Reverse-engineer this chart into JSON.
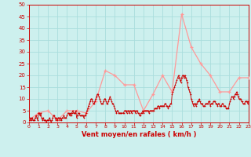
{
  "title": "",
  "xlabel": "Vent moyen/en rafales ( km/h )",
  "bg_color": "#cdf0ee",
  "grid_color": "#aadddd",
  "rafales_color": "#ff9999",
  "moyen_color": "#cc0000",
  "ylim": [
    0,
    50
  ],
  "yticks": [
    0,
    5,
    10,
    15,
    20,
    25,
    30,
    35,
    40,
    45,
    50
  ],
  "xtick_labels": [
    "0",
    "1",
    "2",
    "3",
    "4",
    "5",
    "6",
    "7",
    "8",
    "9",
    "10",
    "11",
    "12",
    "13",
    "14",
    "15",
    "16",
    "17",
    "18",
    "19",
    "20",
    "21",
    "22",
    "23"
  ],
  "rafales_x": [
    0,
    1,
    2,
    3,
    4,
    5,
    6,
    7,
    8,
    9,
    10,
    11,
    12,
    13,
    14,
    15,
    16,
    17,
    18,
    19,
    20,
    21,
    22,
    23
  ],
  "rafales_y": [
    1,
    4,
    5,
    1,
    5,
    5,
    4,
    9,
    22,
    20,
    16,
    16,
    5,
    12,
    20,
    13,
    46,
    32,
    25,
    20,
    13,
    13,
    19,
    19
  ],
  "moyen_y": [
    1,
    1,
    2,
    1,
    2,
    1,
    1,
    1,
    2,
    3,
    2,
    1,
    4,
    4,
    3,
    4,
    2,
    1,
    2,
    1,
    1,
    1,
    0,
    1,
    1,
    1,
    2,
    1,
    0,
    1,
    2,
    3,
    3,
    2,
    1,
    2,
    1,
    2,
    2,
    1,
    2,
    1,
    2,
    2,
    3,
    2,
    2,
    2,
    3,
    4,
    4,
    3,
    4,
    3,
    4,
    5,
    4,
    4,
    4,
    5,
    2,
    3,
    4,
    4,
    3,
    3,
    3,
    3,
    3,
    2,
    3,
    3,
    4,
    5,
    6,
    7,
    8,
    9,
    10,
    10,
    9,
    8,
    8,
    9,
    10,
    11,
    12,
    12,
    11,
    10,
    9,
    8,
    8,
    8,
    9,
    10,
    10,
    9,
    8,
    8,
    9,
    10,
    11,
    10,
    9,
    8,
    8,
    7,
    6,
    5,
    4,
    5,
    5,
    4,
    4,
    4,
    4,
    4,
    4,
    4,
    5,
    5,
    5,
    4,
    5,
    5,
    4,
    5,
    5,
    4,
    5,
    5,
    5,
    5,
    4,
    5,
    5,
    4,
    4,
    3,
    3,
    4,
    4,
    5,
    4,
    5,
    5,
    5,
    5,
    5,
    5,
    4,
    5,
    5,
    5,
    5,
    5,
    5,
    6,
    6,
    6,
    6,
    7,
    7,
    6,
    7,
    7,
    7,
    7,
    7,
    7,
    8,
    8,
    7,
    7,
    6,
    7,
    7,
    8,
    8,
    12,
    13,
    14,
    15,
    16,
    17,
    18,
    19,
    20,
    19,
    18,
    17,
    19,
    20,
    20,
    19,
    20,
    19,
    18,
    17,
    15,
    14,
    13,
    12,
    10,
    9,
    8,
    7,
    8,
    8,
    7,
    8,
    9,
    9,
    10,
    9,
    8,
    8,
    8,
    7,
    7,
    7,
    8,
    8,
    8,
    8,
    9,
    9,
    7,
    8,
    8,
    8,
    9,
    9,
    9,
    8,
    8,
    7,
    8,
    8,
    7,
    7,
    7,
    8,
    8,
    7,
    7,
    7,
    6,
    6,
    6,
    6,
    8,
    9,
    10,
    11,
    11,
    10,
    11,
    12,
    12,
    13,
    12,
    11,
    10,
    10,
    10,
    9,
    9,
    8,
    8,
    8,
    9,
    9,
    9,
    8,
    9
  ]
}
